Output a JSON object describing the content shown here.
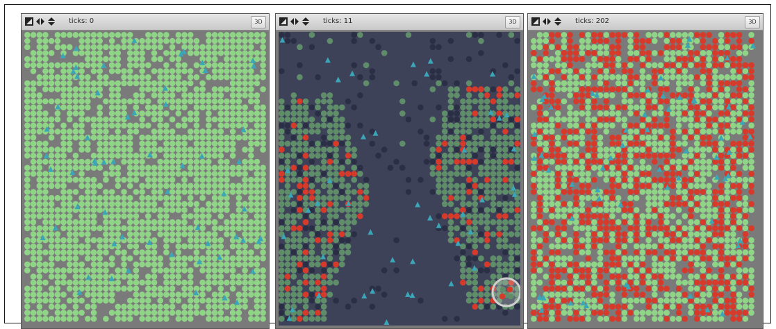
{
  "window": {
    "panels": [
      {
        "id": "p0",
        "ticks_label": "ticks: 0",
        "button_3d": "3D"
      },
      {
        "id": "p1",
        "ticks_label": "ticks: 11",
        "button_3d": "3D"
      },
      {
        "id": "p2",
        "ticks_label": "ticks: 202",
        "button_3d": "3D"
      }
    ]
  },
  "icons": [
    "halt-icon",
    "horizontal-wrap-icon",
    "vertical-wrap-icon"
  ],
  "colors": {
    "gray_bg": "#7a7a7a",
    "dark_bg": "#3e4259",
    "light_green": "#8fd487",
    "mid_green": "#5f8d6a",
    "dark_turtle": "#2b2f45",
    "red": "#d63a2a",
    "cyan": "#3aa6b8",
    "toolbar": "#d8d8d8"
  }
}
